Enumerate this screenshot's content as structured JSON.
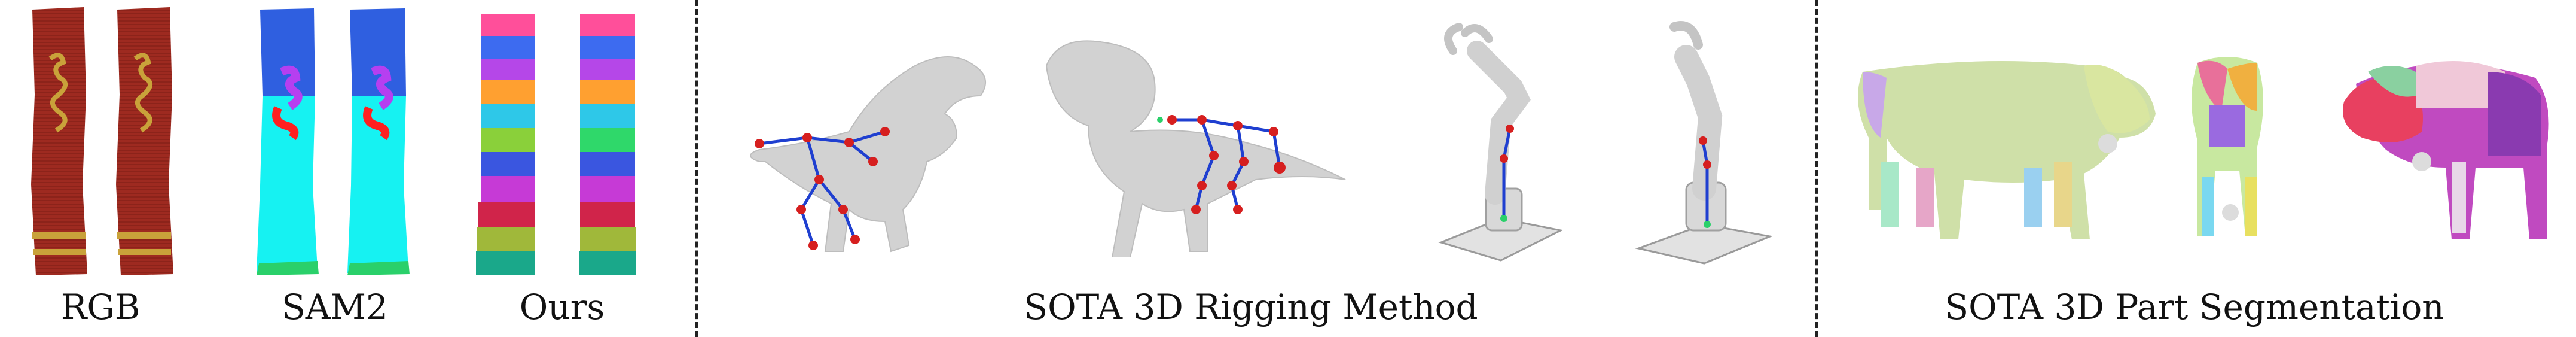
{
  "figure": {
    "sections": [
      {
        "id": "cloth-comparison",
        "sub_captions": [
          "RGB",
          "SAM2",
          "Ours"
        ]
      },
      {
        "id": "rigging",
        "caption": "SOTA 3D Rigging Method"
      },
      {
        "id": "part-segmentation",
        "caption": "SOTA 3D Part Segmentation"
      }
    ],
    "colors": {
      "cloth_red": "#9e2a20",
      "cloth_gold": "#c9a23a",
      "sam2_blue": "#2f5fe0",
      "sam2_cyan": "#16f2f2",
      "skeleton_blue": "#1f3fd0",
      "joint_red": "#d61f1f",
      "mesh_gray": "#cfcfcf"
    }
  }
}
